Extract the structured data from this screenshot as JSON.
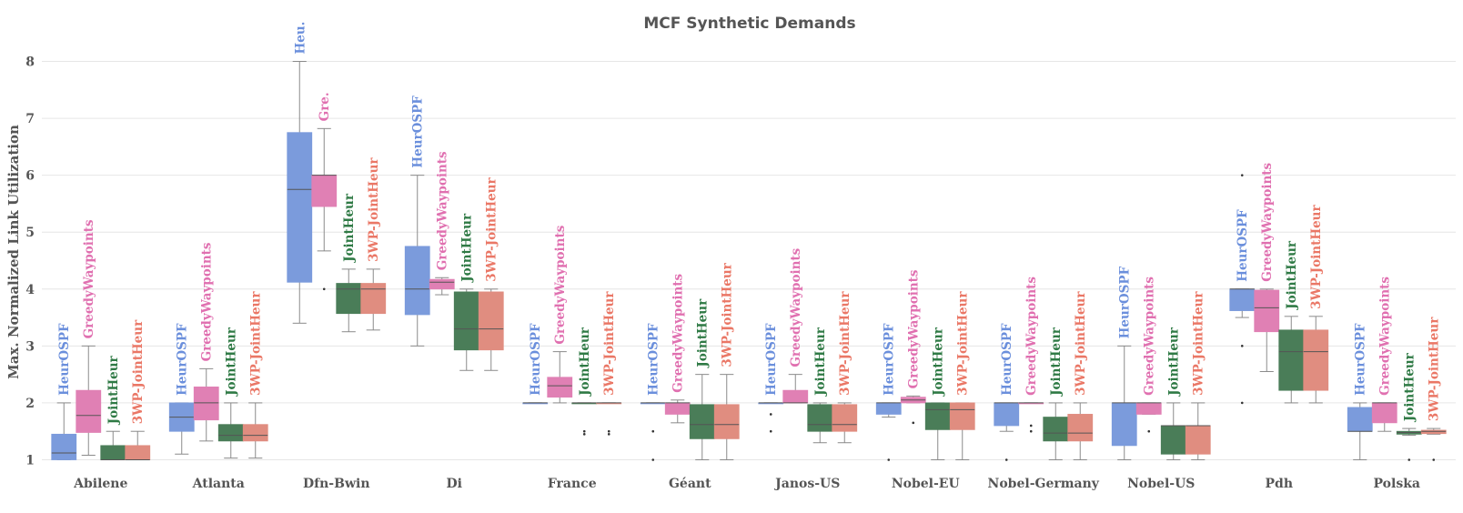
{
  "chart_data": {
    "type": "box",
    "title": "MCF Synthetic Demands",
    "xlabel": "",
    "ylabel": "Max. Normalized Link Utilization",
    "ylim": [
      0.9,
      8.7
    ],
    "yticks": [
      "1",
      "2",
      "3",
      "4",
      "5",
      "6",
      "7",
      "8"
    ],
    "grid": true,
    "categories": [
      "Abilene",
      "Atlanta",
      "Dfn-Bwin",
      "Di",
      "France",
      "Géant",
      "Janos-US",
      "Nobel-EU",
      "Nobel-Germany",
      "Nobel-US",
      "Pdh",
      "Polska"
    ],
    "series": [
      {
        "name": "HeurOSPF",
        "color": "#7b9bdc",
        "label_color": "#6b8fdc",
        "labels": [
          "HeurOSPF",
          "HeurOSPF",
          "Heu.",
          "HeurOSPF",
          "HeurOSPF",
          "HeurOSPF",
          "HeurOSPF",
          "HeurOSPF",
          "HeurOSPF",
          "HeurOSPF",
          "HeurOSPF",
          "HeurOSPF"
        ],
        "boxes": [
          {
            "whislo": 1.0,
            "q1": 1.0,
            "med": 1.12,
            "q3": 1.45,
            "whishi": 2.0,
            "fliers": []
          },
          {
            "whislo": 1.1,
            "q1": 1.5,
            "med": 1.75,
            "q3": 2.0,
            "whishi": 2.0,
            "fliers": []
          },
          {
            "whislo": 3.4,
            "q1": 4.12,
            "med": 5.75,
            "q3": 6.75,
            "whishi": 8.0,
            "fliers": []
          },
          {
            "whislo": 3.0,
            "q1": 3.55,
            "med": 4.0,
            "q3": 4.75,
            "whishi": 6.0,
            "fliers": []
          },
          {
            "whislo": 2.0,
            "q1": 2.0,
            "med": 2.0,
            "q3": 2.0,
            "whishi": 2.0,
            "fliers": []
          },
          {
            "whislo": 2.0,
            "q1": 2.0,
            "med": 2.0,
            "q3": 2.0,
            "whishi": 2.0,
            "fliers": [
              1.5,
              1.0
            ]
          },
          {
            "whislo": 2.0,
            "q1": 2.0,
            "med": 2.0,
            "q3": 2.0,
            "whishi": 2.0,
            "fliers": [
              1.8,
              1.5
            ]
          },
          {
            "whislo": 1.75,
            "q1": 1.8,
            "med": 2.0,
            "q3": 2.0,
            "whishi": 2.0,
            "fliers": [
              1.0
            ]
          },
          {
            "whislo": 1.5,
            "q1": 1.6,
            "med": 2.0,
            "q3": 2.0,
            "whishi": 2.0,
            "fliers": [
              1.0
            ]
          },
          {
            "whislo": 1.0,
            "q1": 1.25,
            "med": 2.0,
            "q3": 2.0,
            "whishi": 3.0,
            "fliers": []
          },
          {
            "whislo": 3.5,
            "q1": 3.62,
            "med": 4.0,
            "q3": 4.0,
            "whishi": 4.0,
            "fliers": [
              6.0,
              3.0,
              2.0
            ]
          },
          {
            "whislo": 1.0,
            "q1": 1.5,
            "med": 1.5,
            "q3": 1.92,
            "whishi": 2.0,
            "fliers": []
          }
        ]
      },
      {
        "name": "GreedyWaypoints",
        "color": "#e080b4",
        "label_color": "#e070b0",
        "labels": [
          "GreedyWaypoints",
          "GreedyWaypoints",
          "Gre.",
          "GreedyWaypoints",
          "GreedyWaypoints",
          "GreedyWaypoints",
          "GreedyWaypoints",
          "GreedyWaypoints",
          "GreedyWaypoints",
          "GreedyWaypoints",
          "GreedyWaypoints",
          "GreedyWaypoints"
        ],
        "boxes": [
          {
            "whislo": 1.08,
            "q1": 1.48,
            "med": 1.78,
            "q3": 2.22,
            "whishi": 3.0,
            "fliers": []
          },
          {
            "whislo": 1.33,
            "q1": 1.7,
            "med": 2.0,
            "q3": 2.28,
            "whishi": 2.6,
            "fliers": []
          },
          {
            "whislo": 4.67,
            "q1": 5.45,
            "med": 6.0,
            "q3": 6.0,
            "whishi": 6.82,
            "fliers": [
              4.0
            ]
          },
          {
            "whislo": 3.9,
            "q1": 4.0,
            "med": 4.12,
            "q3": 4.17,
            "whishi": 4.2,
            "fliers": []
          },
          {
            "whislo": 2.0,
            "q1": 2.1,
            "med": 2.3,
            "q3": 2.45,
            "whishi": 2.9,
            "fliers": []
          },
          {
            "whislo": 1.65,
            "q1": 1.8,
            "med": 2.0,
            "q3": 2.0,
            "whishi": 2.05,
            "fliers": []
          },
          {
            "whislo": 2.0,
            "q1": 2.0,
            "med": 2.0,
            "q3": 2.22,
            "whishi": 2.5,
            "fliers": []
          },
          {
            "whislo": 2.0,
            "q1": 2.0,
            "med": 2.05,
            "q3": 2.1,
            "whishi": 2.12,
            "fliers": [
              1.65
            ]
          },
          {
            "whislo": 2.0,
            "q1": 2.0,
            "med": 2.0,
            "q3": 2.0,
            "whishi": 2.0,
            "fliers": [
              1.6,
              1.5
            ]
          },
          {
            "whislo": 1.8,
            "q1": 1.8,
            "med": 2.0,
            "q3": 2.0,
            "whishi": 2.0,
            "fliers": [
              1.5
            ]
          },
          {
            "whislo": 2.55,
            "q1": 3.25,
            "med": 3.67,
            "q3": 3.98,
            "whishi": 4.0,
            "fliers": []
          },
          {
            "whislo": 1.5,
            "q1": 1.65,
            "med": 2.0,
            "q3": 2.0,
            "whishi": 2.0,
            "fliers": []
          }
        ]
      },
      {
        "name": "JointHeur",
        "color": "#4a7d58",
        "label_color": "#2f7a45",
        "labels": [
          "JointHeur",
          "JointHeur",
          "JointHeur",
          "JointHeur",
          "JointHeur",
          "JointHeur",
          "JointHeur",
          "JointHeur",
          "JointHeur",
          "JointHeur",
          "JointHeur",
          "JointHeur"
        ],
        "boxes": [
          {
            "whislo": 1.0,
            "q1": 1.0,
            "med": 1.0,
            "q3": 1.25,
            "whishi": 1.5,
            "fliers": []
          },
          {
            "whislo": 1.03,
            "q1": 1.33,
            "med": 1.43,
            "q3": 1.62,
            "whishi": 2.0,
            "fliers": []
          },
          {
            "whislo": 3.25,
            "q1": 3.57,
            "med": 4.0,
            "q3": 4.1,
            "whishi": 4.35,
            "fliers": []
          },
          {
            "whislo": 2.57,
            "q1": 2.93,
            "med": 3.3,
            "q3": 3.95,
            "whishi": 4.0,
            "fliers": []
          },
          {
            "whislo": 2.0,
            "q1": 2.0,
            "med": 2.0,
            "q3": 2.0,
            "whishi": 2.0,
            "fliers": [
              1.5,
              1.45
            ]
          },
          {
            "whislo": 1.0,
            "q1": 1.37,
            "med": 1.62,
            "q3": 1.97,
            "whishi": 2.5,
            "fliers": []
          },
          {
            "whislo": 1.3,
            "q1": 1.5,
            "med": 1.62,
            "q3": 1.97,
            "whishi": 2.0,
            "fliers": []
          },
          {
            "whislo": 1.0,
            "q1": 1.53,
            "med": 1.88,
            "q3": 2.0,
            "whishi": 2.0,
            "fliers": []
          },
          {
            "whislo": 1.0,
            "q1": 1.33,
            "med": 1.47,
            "q3": 1.75,
            "whishi": 2.0,
            "fliers": []
          },
          {
            "whislo": 1.0,
            "q1": 1.1,
            "med": 1.6,
            "q3": 1.6,
            "whishi": 2.0,
            "fliers": []
          },
          {
            "whislo": 2.0,
            "q1": 2.22,
            "med": 2.9,
            "q3": 3.28,
            "whishi": 3.52,
            "fliers": []
          },
          {
            "whislo": 1.43,
            "q1": 1.45,
            "med": 1.48,
            "q3": 1.5,
            "whishi": 1.55,
            "fliers": [
              1.0
            ]
          }
        ]
      },
      {
        "name": "3WP-JointHeur",
        "color": "#e08d80",
        "label_color": "#ea7766",
        "labels": [
          "3WP-JointHeur",
          "3WP-JointHeur",
          "3WP-JointHeur",
          "3WP-JointHeur",
          "3WP-JointHeur",
          "3WP-JointHeur",
          "3WP-JointHeur",
          "3WP-JointHeur",
          "3WP-JointHeur",
          "3WP-JointHeur",
          "3WP-JointHeur",
          "3WP-JointHeur"
        ],
        "boxes": [
          {
            "whislo": 1.0,
            "q1": 1.0,
            "med": 1.0,
            "q3": 1.25,
            "whishi": 1.5,
            "fliers": []
          },
          {
            "whislo": 1.03,
            "q1": 1.33,
            "med": 1.43,
            "q3": 1.62,
            "whishi": 2.0,
            "fliers": []
          },
          {
            "whislo": 3.28,
            "q1": 3.57,
            "med": 4.0,
            "q3": 4.1,
            "whishi": 4.35,
            "fliers": []
          },
          {
            "whislo": 2.57,
            "q1": 2.93,
            "med": 3.3,
            "q3": 3.95,
            "whishi": 4.0,
            "fliers": []
          },
          {
            "whislo": 2.0,
            "q1": 2.0,
            "med": 2.0,
            "q3": 2.0,
            "whishi": 2.0,
            "fliers": [
              1.5,
              1.45
            ]
          },
          {
            "whislo": 1.0,
            "q1": 1.37,
            "med": 1.62,
            "q3": 1.97,
            "whishi": 2.5,
            "fliers": []
          },
          {
            "whislo": 1.3,
            "q1": 1.5,
            "med": 1.62,
            "q3": 1.97,
            "whishi": 2.0,
            "fliers": []
          },
          {
            "whislo": 1.0,
            "q1": 1.53,
            "med": 1.88,
            "q3": 2.0,
            "whishi": 2.0,
            "fliers": []
          },
          {
            "whislo": 1.0,
            "q1": 1.33,
            "med": 1.47,
            "q3": 1.8,
            "whishi": 2.0,
            "fliers": []
          },
          {
            "whislo": 1.0,
            "q1": 1.1,
            "med": 1.6,
            "q3": 1.6,
            "whishi": 2.0,
            "fliers": []
          },
          {
            "whislo": 2.0,
            "q1": 2.22,
            "med": 2.9,
            "q3": 3.28,
            "whishi": 3.52,
            "fliers": []
          },
          {
            "whislo": 1.45,
            "q1": 1.46,
            "med": 1.5,
            "q3": 1.52,
            "whishi": 1.55,
            "fliers": [
              1.0
            ]
          }
        ]
      }
    ]
  }
}
